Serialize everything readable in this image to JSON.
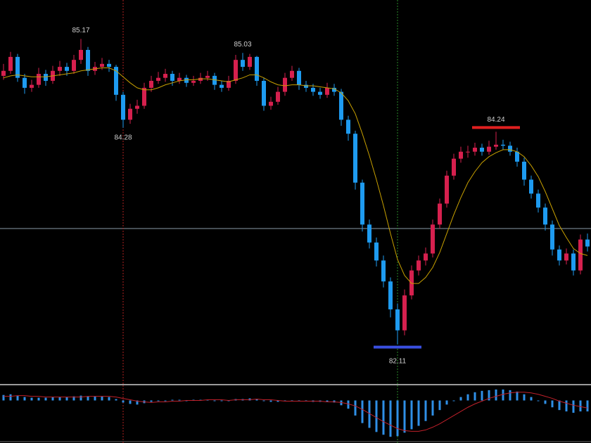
{
  "chart_data": {
    "type": "candlestick",
    "colors": {
      "up": "#d6204e",
      "down": "#1e9bf0"
    },
    "ylim": [
      81.72,
      85.56
    ],
    "candles": [
      [
        84.8,
        84.92,
        84.76,
        84.85
      ],
      [
        84.85,
        85.04,
        84.82,
        84.99
      ],
      [
        84.99,
        85.02,
        84.74,
        84.78
      ],
      [
        84.78,
        84.82,
        84.62,
        84.68
      ],
      [
        84.68,
        84.76,
        84.64,
        84.71
      ],
      [
        84.71,
        84.88,
        84.68,
        84.82
      ],
      [
        84.82,
        84.86,
        84.7,
        84.75
      ],
      [
        84.75,
        84.9,
        84.72,
        84.85
      ],
      [
        84.85,
        84.95,
        84.8,
        84.89
      ],
      [
        84.89,
        84.93,
        84.8,
        84.85
      ],
      [
        84.85,
        85.01,
        84.82,
        84.96
      ],
      [
        84.96,
        85.17,
        84.92,
        85.06
      ],
      [
        85.06,
        85.09,
        84.8,
        84.85
      ],
      [
        84.85,
        84.94,
        84.81,
        84.89
      ],
      [
        84.89,
        84.98,
        84.86,
        84.92
      ],
      [
        84.92,
        84.96,
        84.84,
        84.89
      ],
      [
        84.89,
        84.91,
        84.55,
        84.61
      ],
      [
        84.61,
        84.64,
        84.28,
        84.36
      ],
      [
        84.36,
        84.52,
        84.32,
        84.47
      ],
      [
        84.47,
        84.56,
        84.42,
        84.5
      ],
      [
        84.5,
        84.73,
        84.47,
        84.68
      ],
      [
        84.68,
        84.8,
        84.64,
        84.75
      ],
      [
        84.75,
        84.84,
        84.72,
        84.78
      ],
      [
        84.78,
        84.87,
        84.74,
        84.82
      ],
      [
        84.82,
        84.85,
        84.7,
        84.75
      ],
      [
        84.75,
        84.83,
        84.72,
        84.78
      ],
      [
        84.78,
        84.81,
        84.69,
        84.73
      ],
      [
        84.73,
        84.8,
        84.7,
        84.75
      ],
      [
        84.75,
        84.83,
        84.72,
        84.78
      ],
      [
        84.78,
        84.85,
        84.75,
        84.8
      ],
      [
        84.8,
        84.83,
        84.66,
        84.71
      ],
      [
        84.71,
        84.75,
        84.64,
        84.68
      ],
      [
        84.68,
        84.8,
        84.65,
        84.75
      ],
      [
        84.75,
        85.01,
        84.72,
        84.96
      ],
      [
        84.96,
        85.03,
        84.85,
        84.89
      ],
      [
        84.89,
        85.02,
        84.86,
        84.99
      ],
      [
        84.99,
        85.0,
        84.7,
        84.75
      ],
      [
        84.75,
        84.78,
        84.45,
        84.5
      ],
      [
        84.5,
        84.59,
        84.46,
        84.54
      ],
      [
        84.54,
        84.69,
        84.51,
        84.64
      ],
      [
        84.64,
        84.83,
        84.6,
        84.78
      ],
      [
        84.78,
        84.9,
        84.75,
        84.85
      ],
      [
        84.85,
        84.88,
        84.66,
        84.71
      ],
      [
        84.71,
        84.75,
        84.64,
        84.68
      ],
      [
        84.68,
        84.72,
        84.6,
        84.64
      ],
      [
        84.64,
        84.68,
        84.57,
        84.61
      ],
      [
        84.61,
        84.73,
        84.58,
        84.68
      ],
      [
        84.68,
        84.72,
        84.6,
        84.64
      ],
      [
        84.64,
        84.67,
        84.3,
        84.36
      ],
      [
        84.36,
        84.4,
        84.15,
        84.22
      ],
      [
        84.22,
        84.25,
        83.66,
        83.73
      ],
      [
        83.73,
        83.76,
        83.24,
        83.31
      ],
      [
        83.31,
        83.36,
        83.07,
        83.13
      ],
      [
        83.13,
        83.18,
        82.89,
        82.95
      ],
      [
        82.95,
        83.0,
        82.68,
        82.74
      ],
      [
        82.74,
        82.78,
        82.38,
        82.46
      ],
      [
        82.46,
        82.52,
        82.11,
        82.25
      ],
      [
        82.25,
        82.66,
        82.2,
        82.6
      ],
      [
        82.6,
        82.9,
        82.56,
        82.85
      ],
      [
        82.85,
        83.0,
        82.8,
        82.95
      ],
      [
        82.95,
        83.08,
        82.9,
        83.02
      ],
      [
        83.02,
        83.36,
        82.98,
        83.31
      ],
      [
        83.31,
        83.57,
        83.27,
        83.52
      ],
      [
        83.52,
        83.85,
        83.48,
        83.8
      ],
      [
        83.8,
        84.02,
        83.76,
        83.97
      ],
      [
        83.97,
        84.09,
        83.93,
        84.04
      ],
      [
        84.04,
        84.1,
        83.98,
        84.04
      ],
      [
        84.04,
        84.13,
        84.0,
        84.08
      ],
      [
        84.08,
        84.12,
        84.0,
        84.04
      ],
      [
        84.04,
        84.15,
        84.01,
        84.09
      ],
      [
        84.09,
        84.24,
        84.06,
        84.11
      ],
      [
        84.11,
        84.16,
        84.06,
        84.1
      ],
      [
        84.1,
        84.14,
        84.0,
        84.04
      ],
      [
        84.04,
        84.08,
        83.89,
        83.94
      ],
      [
        83.94,
        83.98,
        83.7,
        83.76
      ],
      [
        83.76,
        83.8,
        83.57,
        83.62
      ],
      [
        83.62,
        83.66,
        83.43,
        83.48
      ],
      [
        83.48,
        83.52,
        83.25,
        83.31
      ],
      [
        83.31,
        83.35,
        83.0,
        83.06
      ],
      [
        83.06,
        83.1,
        82.9,
        82.95
      ],
      [
        82.95,
        83.07,
        82.91,
        83.02
      ],
      [
        83.02,
        83.06,
        82.8,
        82.85
      ],
      [
        82.85,
        83.21,
        82.81,
        83.16
      ],
      [
        83.16,
        83.22,
        83.04,
        83.09
      ]
    ],
    "ma": {
      "color": "#c8a000",
      "values": [
        84.78,
        84.8,
        84.81,
        84.8,
        84.79,
        84.79,
        84.79,
        84.8,
        84.81,
        84.82,
        84.83,
        84.85,
        84.86,
        84.87,
        84.88,
        84.88,
        84.85,
        84.79,
        84.73,
        84.68,
        84.66,
        84.66,
        84.68,
        84.71,
        84.73,
        84.75,
        84.76,
        84.76,
        84.77,
        84.77,
        84.76,
        84.75,
        84.74,
        84.76,
        84.78,
        84.81,
        84.81,
        84.78,
        84.74,
        84.71,
        84.7,
        84.71,
        84.71,
        84.7,
        84.7,
        84.69,
        84.68,
        84.67,
        84.63,
        84.55,
        84.42,
        84.22,
        84.0,
        83.76,
        83.5,
        83.22,
        82.96,
        82.8,
        82.72,
        82.72,
        82.78,
        82.88,
        83.03,
        83.22,
        83.41,
        83.58,
        83.73,
        83.84,
        83.93,
        83.99,
        84.03,
        84.06,
        84.06,
        84.04,
        83.99,
        83.9,
        83.79,
        83.64,
        83.47,
        83.3,
        83.18,
        83.07,
        83.02,
        83.0
      ]
    },
    "hline": {
      "value": 83.27,
      "color": "#8a9aa8"
    },
    "annotations": [
      {
        "value": 85.17,
        "at": "high"
      },
      {
        "value": 85.03,
        "at": "high"
      },
      {
        "value": 84.28,
        "at": "low",
        "vline": "#b02020"
      },
      {
        "value": 84.24,
        "at": "high",
        "marker": "#e02020"
      },
      {
        "value": 82.11,
        "at": "low",
        "marker": "#3a4fe0",
        "vline": "#2a8a2a"
      }
    ],
    "macd": {
      "ylim": [
        -0.6,
        0.2
      ],
      "histogram": {
        "color": "#2f8fe6",
        "values": [
          0.08,
          0.09,
          0.07,
          0.05,
          0.04,
          0.04,
          0.04,
          0.05,
          0.05,
          0.05,
          0.06,
          0.07,
          0.06,
          0.06,
          0.06,
          0.05,
          0.02,
          -0.03,
          -0.05,
          -0.06,
          -0.04,
          -0.02,
          -0.01,
          0.0,
          0.01,
          0.01,
          0.0,
          0.01,
          0.01,
          0.01,
          0.0,
          0.0,
          0.0,
          0.02,
          0.02,
          0.03,
          0.02,
          -0.01,
          -0.02,
          -0.02,
          -0.01,
          0.0,
          -0.01,
          -0.01,
          -0.02,
          -0.02,
          -0.02,
          -0.03,
          -0.07,
          -0.12,
          -0.22,
          -0.33,
          -0.4,
          -0.46,
          -0.5,
          -0.53,
          -0.52,
          -0.47,
          -0.42,
          -0.37,
          -0.3,
          -0.22,
          -0.14,
          -0.06,
          0.0,
          0.05,
          0.09,
          0.12,
          0.14,
          0.15,
          0.16,
          0.16,
          0.15,
          0.13,
          0.09,
          0.05,
          0.0,
          -0.05,
          -0.1,
          -0.14,
          -0.16,
          -0.18,
          -0.16,
          -0.16
        ]
      },
      "signal": {
        "color": "#c0202a",
        "values": [
          0.06,
          0.06,
          0.07,
          0.07,
          0.06,
          0.06,
          0.05,
          0.05,
          0.05,
          0.05,
          0.05,
          0.05,
          0.06,
          0.06,
          0.06,
          0.06,
          0.05,
          0.03,
          0.01,
          -0.01,
          -0.02,
          -0.03,
          -0.02,
          -0.02,
          -0.01,
          -0.01,
          0.0,
          0.0,
          0.0,
          0.01,
          0.01,
          0.01,
          0.0,
          0.01,
          0.01,
          0.01,
          0.02,
          0.01,
          0.01,
          0.0,
          -0.01,
          -0.01,
          -0.01,
          -0.01,
          -0.01,
          -0.01,
          -0.02,
          -0.02,
          -0.03,
          -0.05,
          -0.08,
          -0.13,
          -0.19,
          -0.25,
          -0.31,
          -0.36,
          -0.41,
          -0.44,
          -0.45,
          -0.45,
          -0.43,
          -0.39,
          -0.34,
          -0.28,
          -0.22,
          -0.16,
          -0.1,
          -0.05,
          -0.01,
          0.03,
          0.06,
          0.09,
          0.11,
          0.12,
          0.12,
          0.11,
          0.09,
          0.06,
          0.03,
          -0.01,
          -0.04,
          -0.07,
          -0.09,
          -0.11
        ]
      }
    }
  }
}
